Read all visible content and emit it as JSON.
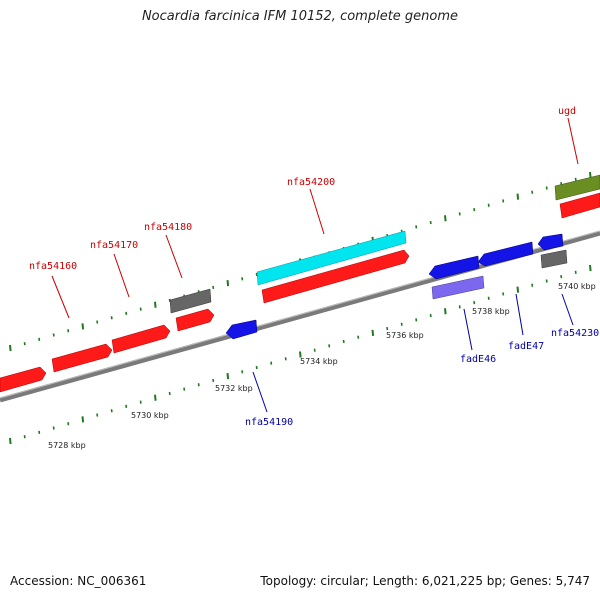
{
  "title": "Nocardia farcinica IFM 10152, complete genome",
  "footer": {
    "accession": "Accession: NC_006361",
    "summary": "Topology: circular; Length: 6,021,225 bp; Genes: 5,747"
  },
  "colors": {
    "forward_gene": "#ff0000",
    "reverse_gene": "#0000dd",
    "rna_gene": "#00e5ee",
    "pseudo_gene": "#666666",
    "olive_gene": "#6b8e23",
    "purple_gene": "#7b68ee",
    "tick": "#1f7a1f",
    "label_forward": "#cc0000",
    "label_reverse": "#0000aa"
  },
  "kbp_labels": [
    "5728 kbp",
    "5730 kbp",
    "5732 kbp",
    "5734 kbp",
    "5736 kbp",
    "5738 kbp",
    "5740 kbp"
  ],
  "gene_labels": [
    {
      "text": "nfa54160",
      "strand": "forward"
    },
    {
      "text": "nfa54170",
      "strand": "forward"
    },
    {
      "text": "nfa54180",
      "strand": "forward"
    },
    {
      "text": "nfa54200",
      "strand": "forward"
    },
    {
      "text": "ugd",
      "strand": "forward"
    },
    {
      "text": "nfa54190",
      "strand": "reverse"
    },
    {
      "text": "fadE46",
      "strand": "reverse"
    },
    {
      "text": "fadE47",
      "strand": "reverse"
    },
    {
      "text": "nfa54230",
      "strand": "reverse"
    }
  ]
}
